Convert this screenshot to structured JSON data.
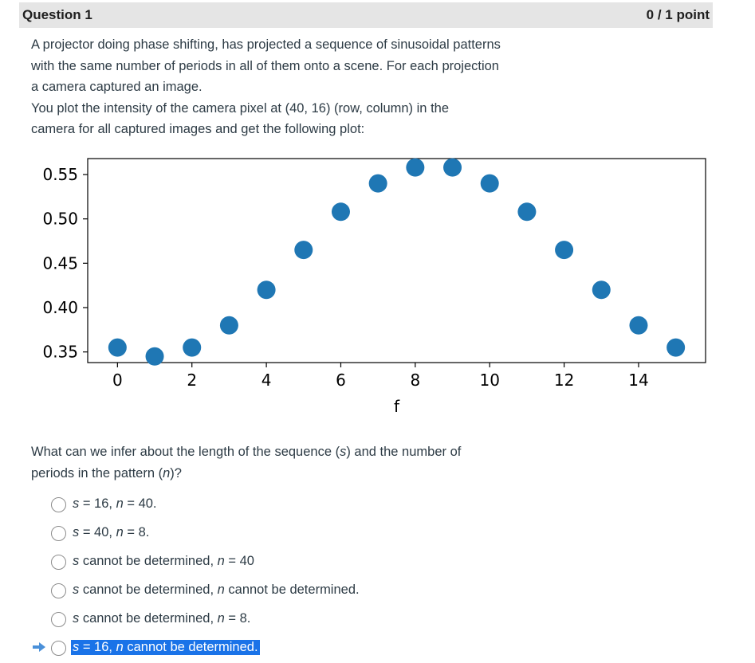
{
  "header": {
    "title": "Question 1",
    "points": "0 / 1 point"
  },
  "intro": {
    "line1": "A projector doing phase shifting, has projected a sequence of sinusoidal patterns",
    "line2": "with the same number of periods in all of them onto a scene. For each projection",
    "line3": "a camera captured an image.",
    "line4": "You plot the intensity of the camera pixel at (40, 16) (row, column) in the",
    "line5": "camera for all captured images and get the following plot:"
  },
  "chart_data": {
    "type": "scatter",
    "title": "",
    "xlabel": "f",
    "ylabel": "",
    "x": [
      0,
      1,
      2,
      3,
      4,
      5,
      6,
      7,
      8,
      9,
      10,
      11,
      12,
      13,
      14,
      15
    ],
    "y": [
      0.355,
      0.345,
      0.355,
      0.38,
      0.42,
      0.465,
      0.508,
      0.54,
      0.558,
      0.558,
      0.54,
      0.508,
      0.465,
      0.42,
      0.38,
      0.355
    ],
    "xlim": [
      -0.8,
      15.8
    ],
    "ylim": [
      0.338,
      0.568
    ],
    "xticks": [
      0,
      2,
      4,
      6,
      8,
      10,
      12,
      14
    ],
    "xtick_labels": [
      "0",
      "2",
      "4",
      "6",
      "8",
      "10",
      "12",
      "14"
    ],
    "yticks": [
      0.35,
      0.4,
      0.45,
      0.5,
      0.55
    ],
    "ytick_labels": [
      "0.35",
      "0.40",
      "0.45",
      "0.50",
      "0.55"
    ],
    "point_color": "#1f77b4",
    "grid": false
  },
  "question": {
    "text_a": "What can we infer about the length of the sequence (",
    "var_s": "s",
    "text_b": ") and the number of",
    "text_c": "periods in the pattern (",
    "var_n": "n",
    "text_d": ")?"
  },
  "answers": [
    {
      "s": "s",
      "mid": " = 16, ",
      "n": "n",
      "end": " = 40.",
      "selected": false
    },
    {
      "s": "s",
      "mid": " = 40, ",
      "n": "n",
      "end": " = 8.",
      "selected": false
    },
    {
      "s": "s",
      "mid": " cannot be determined, ",
      "n": "n",
      "end": " = 40",
      "selected": false
    },
    {
      "s": "s",
      "mid": " cannot be determined, ",
      "n": "n",
      "end": " cannot be determined.",
      "selected": false
    },
    {
      "s": "s",
      "mid": " cannot be determined, ",
      "n": "n",
      "end": " = 8.",
      "selected": false
    },
    {
      "s": "s",
      "mid": " = 16, ",
      "n": "n",
      "end": " cannot be determined.",
      "selected": true
    }
  ],
  "colors": {
    "selection": "#1a73e8",
    "arrow": "#4a90d9",
    "header_bg": "#e5e5e5"
  }
}
